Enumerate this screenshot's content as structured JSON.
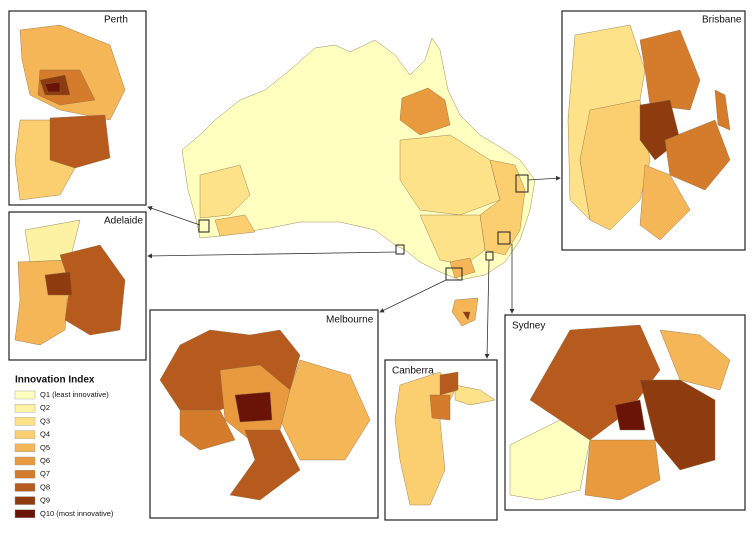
{
  "insets": [
    {
      "label": "Perth"
    },
    {
      "label": "Adelaide"
    },
    {
      "label": "Brisbane"
    },
    {
      "label": "Melbourne"
    },
    {
      "label": "Canberra"
    },
    {
      "label": "Sydney"
    }
  ],
  "legend": {
    "title": "Innovation Index",
    "items": [
      {
        "label": "Q1 (least innovative)",
        "color": "#ffffbf"
      },
      {
        "label": "Q2",
        "color": "#fdf2a4"
      },
      {
        "label": "Q3",
        "color": "#fde28a"
      },
      {
        "label": "Q4",
        "color": "#fbcf70"
      },
      {
        "label": "Q5",
        "color": "#f5b657"
      },
      {
        "label": "Q6",
        "color": "#e99a3f"
      },
      {
        "label": "Q7",
        "color": "#d47c2c"
      },
      {
        "label": "Q8",
        "color": "#b65b1d"
      },
      {
        "label": "Q9",
        "color": "#8e3b10"
      },
      {
        "label": "Q10 (most innovative)",
        "color": "#6a1408"
      }
    ]
  }
}
